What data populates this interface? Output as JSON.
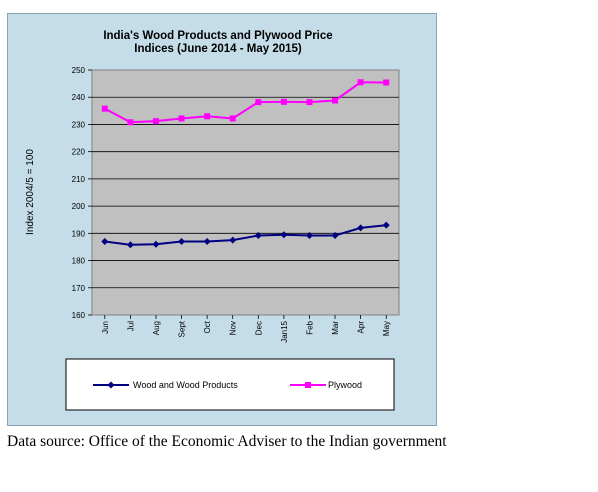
{
  "caption": "Data source: Office of the Economic Adviser to the Indian government",
  "chart_data": {
    "type": "line",
    "title": "India's Wood Products and Plywood Price Indices (June 2014 - May 2015)",
    "title_lines": [
      "India's  Wood Products and Plywood Price",
      "Indices  (June 2014 - May 2015)"
    ],
    "xlabel": "",
    "ylabel": "Index 2004/5 = 100",
    "categories": [
      "Jun",
      "Jul",
      "Aug",
      "Sept",
      "Oct",
      "Nov",
      "Dec",
      "Jan15",
      "Feb",
      "Mar",
      "Apr",
      "May"
    ],
    "ylim": [
      160,
      250
    ],
    "yticks": [
      160,
      170,
      180,
      190,
      200,
      210,
      220,
      230,
      240,
      250
    ],
    "grid": true,
    "legend_position": "bottom",
    "plot_background": "#c0c0c0",
    "figure_background": "#c5dde8",
    "series": [
      {
        "name": "Wood and Wood Products",
        "color": "#000080",
        "marker": "diamond",
        "values": [
          187,
          185.8,
          186,
          187,
          187,
          187.5,
          189.2,
          189.5,
          189.2,
          189.2,
          192,
          193
        ]
      },
      {
        "name": "Plywood",
        "color": "#ff00ff",
        "marker": "square",
        "values": [
          235.8,
          230.8,
          231.2,
          232.2,
          233,
          232.2,
          238.2,
          238.3,
          238.2,
          238.8,
          245.5,
          245.4
        ]
      }
    ]
  }
}
